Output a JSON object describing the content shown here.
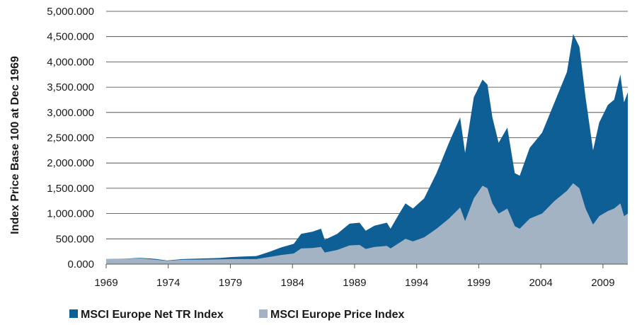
{
  "chart_data": {
    "type": "area",
    "ylabel": "Index Price Base 100 at Dec 1969",
    "xlabel": "",
    "ylim": [
      0,
      5000
    ],
    "xlim": [
      1969.9,
      2011.9
    ],
    "y_ticks": [
      0,
      500,
      1000,
      1500,
      2000,
      2500,
      3000,
      3500,
      4000,
      4500,
      5000
    ],
    "y_tick_labels": [
      "0.000",
      "500.000",
      "1,000.000",
      "1,500.000",
      "2,000.000",
      "2,500.000",
      "3,000.000",
      "3,500.000",
      "4,000.000",
      "4,500.000",
      "5,000.000"
    ],
    "x_ticks": [
      1969.9,
      1974.9,
      1979.9,
      1984.9,
      1989.9,
      1994.9,
      1999.9,
      2004.9,
      2009.9
    ],
    "x_tick_labels": [
      "1969",
      "1974",
      "1979",
      "1984",
      "1989",
      "1994",
      "1999",
      "2004",
      "2009"
    ],
    "grid": "horizontal",
    "legend": "bottom-left",
    "series": [
      {
        "name": "MSCI Europe Net TR Index",
        "color": "#0e5f96",
        "points": [
          [
            1969.9,
            100
          ],
          [
            1971.5,
            108
          ],
          [
            1972.6,
            125
          ],
          [
            1973.8,
            105
          ],
          [
            1974.8,
            72
          ],
          [
            1976,
            100
          ],
          [
            1977.5,
            110
          ],
          [
            1979,
            120
          ],
          [
            1980,
            140
          ],
          [
            1981,
            150
          ],
          [
            1982,
            160
          ],
          [
            1983,
            240
          ],
          [
            1984,
            330
          ],
          [
            1985,
            400
          ],
          [
            1985.6,
            600
          ],
          [
            1986.5,
            640
          ],
          [
            1987.2,
            700
          ],
          [
            1987.5,
            480
          ],
          [
            1988.5,
            600
          ],
          [
            1989.5,
            800
          ],
          [
            1990.3,
            820
          ],
          [
            1990.8,
            660
          ],
          [
            1991.5,
            760
          ],
          [
            1992.5,
            820
          ],
          [
            1992.8,
            700
          ],
          [
            1993.5,
            1000
          ],
          [
            1994,
            1200
          ],
          [
            1994.6,
            1100
          ],
          [
            1995.5,
            1300
          ],
          [
            1996.5,
            1800
          ],
          [
            1997.5,
            2400
          ],
          [
            1998.4,
            2900
          ],
          [
            1998.8,
            2200
          ],
          [
            1999.5,
            3300
          ],
          [
            2000.2,
            3650
          ],
          [
            2000.6,
            3550
          ],
          [
            2001,
            2900
          ],
          [
            2001.5,
            2400
          ],
          [
            2002.2,
            2700
          ],
          [
            2002.8,
            1800
          ],
          [
            2003.2,
            1750
          ],
          [
            2004,
            2300
          ],
          [
            2005,
            2600
          ],
          [
            2006,
            3200
          ],
          [
            2007,
            3800
          ],
          [
            2007.5,
            4550
          ],
          [
            2008,
            4300
          ],
          [
            2008.5,
            3300
          ],
          [
            2009.1,
            2250
          ],
          [
            2009.6,
            2800
          ],
          [
            2010.3,
            3150
          ],
          [
            2010.8,
            3250
          ],
          [
            2011.3,
            3750
          ],
          [
            2011.6,
            3200
          ],
          [
            2011.9,
            3400
          ]
        ]
      },
      {
        "name": "MSCI Europe Price Index",
        "color": "#a4b3c4",
        "points": [
          [
            1969.9,
            100
          ],
          [
            1971.5,
            105
          ],
          [
            1972.6,
            115
          ],
          [
            1973.8,
            90
          ],
          [
            1974.8,
            65
          ],
          [
            1976,
            85
          ],
          [
            1977.5,
            90
          ],
          [
            1979,
            95
          ],
          [
            1980,
            100
          ],
          [
            1981,
            100
          ],
          [
            1982,
            100
          ],
          [
            1983,
            140
          ],
          [
            1984,
            180
          ],
          [
            1985,
            210
          ],
          [
            1985.6,
            310
          ],
          [
            1986.5,
            320
          ],
          [
            1987.2,
            340
          ],
          [
            1987.5,
            230
          ],
          [
            1988.5,
            280
          ],
          [
            1989.5,
            370
          ],
          [
            1990.3,
            380
          ],
          [
            1990.8,
            300
          ],
          [
            1991.5,
            340
          ],
          [
            1992.5,
            360
          ],
          [
            1992.8,
            310
          ],
          [
            1993.5,
            420
          ],
          [
            1994,
            500
          ],
          [
            1994.6,
            450
          ],
          [
            1995.5,
            530
          ],
          [
            1996.5,
            700
          ],
          [
            1997.5,
            900
          ],
          [
            1998.4,
            1120
          ],
          [
            1998.8,
            850
          ],
          [
            1999.5,
            1300
          ],
          [
            2000.2,
            1550
          ],
          [
            2000.6,
            1500
          ],
          [
            2001,
            1200
          ],
          [
            2001.5,
            1000
          ],
          [
            2002.2,
            1100
          ],
          [
            2002.8,
            750
          ],
          [
            2003.2,
            700
          ],
          [
            2004,
            900
          ],
          [
            2005,
            1000
          ],
          [
            2006,
            1250
          ],
          [
            2007,
            1450
          ],
          [
            2007.5,
            1600
          ],
          [
            2008,
            1500
          ],
          [
            2008.5,
            1100
          ],
          [
            2009.1,
            780
          ],
          [
            2009.6,
            950
          ],
          [
            2010.3,
            1050
          ],
          [
            2010.8,
            1100
          ],
          [
            2011.3,
            1200
          ],
          [
            2011.6,
            950
          ],
          [
            2011.9,
            1000
          ]
        ]
      }
    ]
  }
}
